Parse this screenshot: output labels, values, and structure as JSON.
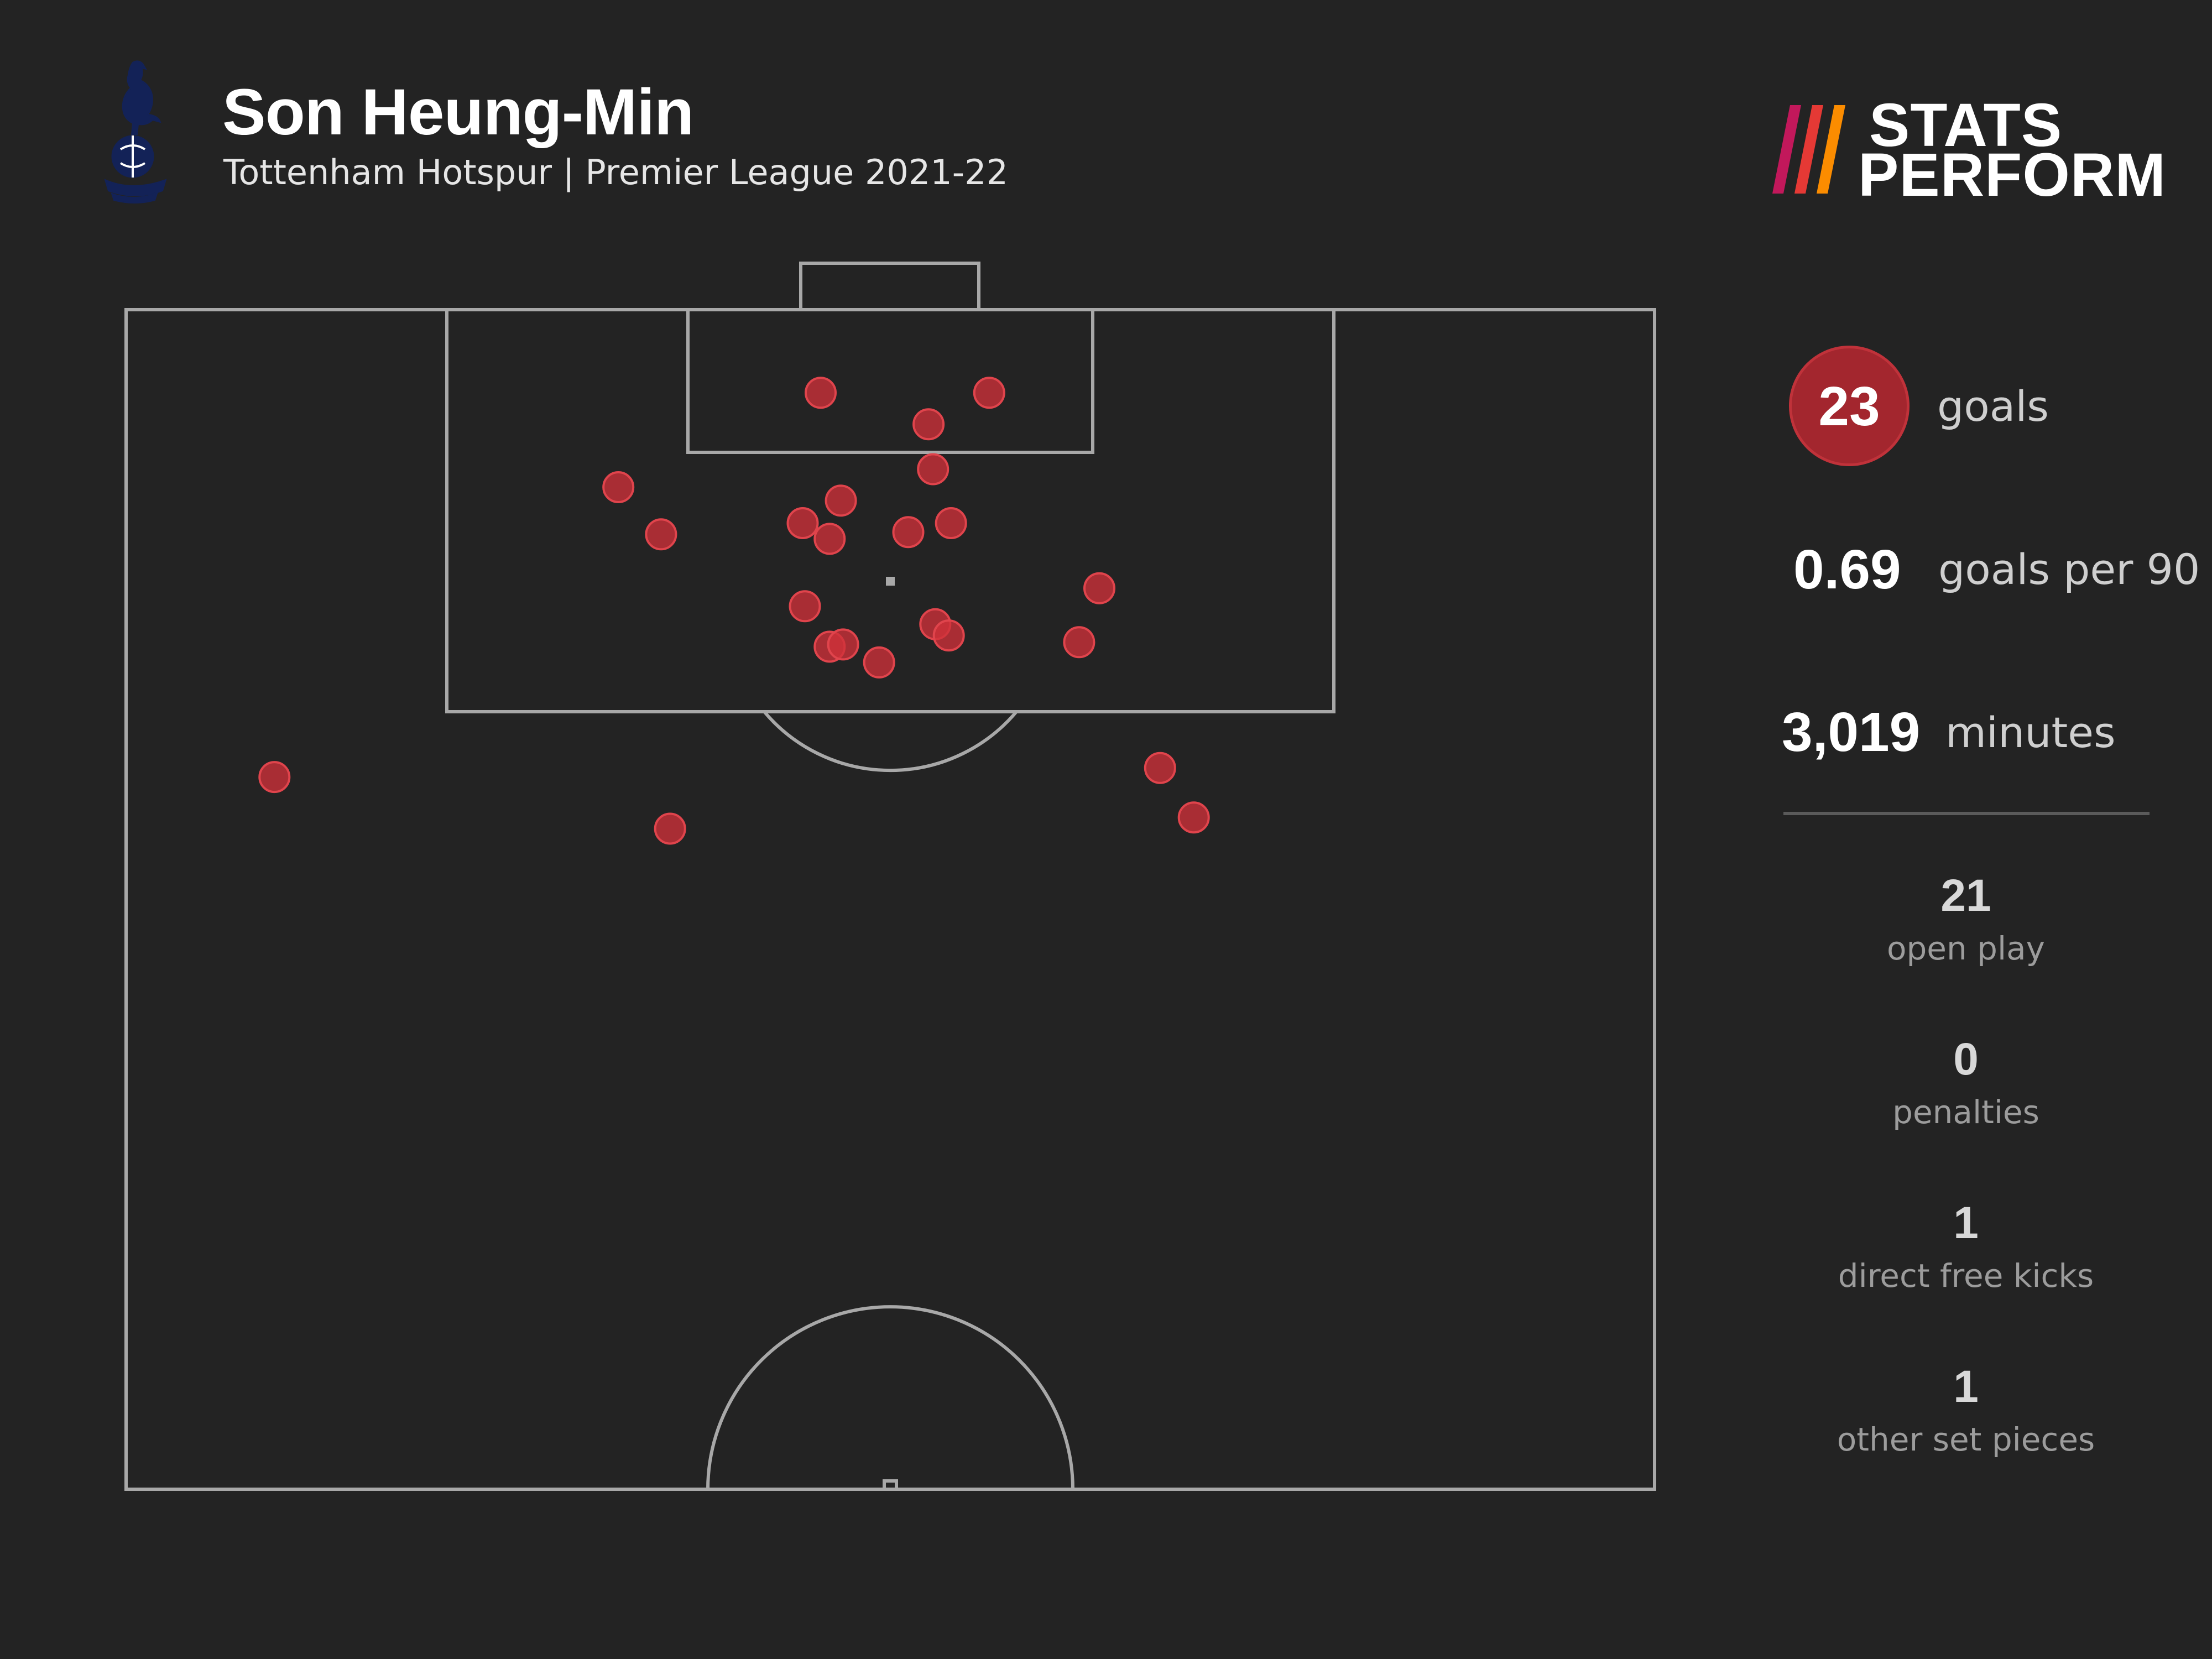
{
  "header": {
    "player_name": "Son Heung-Min",
    "subtitle": "Tottenham Hotspur | Premier League 2021-22"
  },
  "brand": {
    "line1": "STATS",
    "line2": "PERFORM",
    "stripe_colors": [
      "#c2185b",
      "#e53935",
      "#fb8c00"
    ]
  },
  "crest": {
    "icon": "tottenham-cockerel-crest-icon",
    "color": "#132257"
  },
  "stats": {
    "goals_value": "23",
    "goals_label": "goals",
    "per90_value": "0.69",
    "per90_label": "goals per 90",
    "minutes_value": "3,019",
    "minutes_label": "minutes"
  },
  "breakdown": [
    {
      "value": "21",
      "label": "open play"
    },
    {
      "value": "0",
      "label": "penalties"
    },
    {
      "value": "1",
      "label": "direct free kicks"
    },
    {
      "value": "1",
      "label": "other set pieces"
    }
  ],
  "colors": {
    "background": "#232323",
    "pitch_lines": "#a8a8a8",
    "goal_marker": "#d0313a",
    "highlight": "#a3262e"
  },
  "chart_data": {
    "type": "scatter",
    "title": "Son Heung-Min",
    "subtitle": "Tottenham Hotspur | Premier League 2021-22",
    "units": "metres from centre of goal line (x lateral, y distance from goal line)",
    "xlim": [
      -34,
      34
    ],
    "ylim": [
      0,
      52.5
    ],
    "series": [
      {
        "points": [
          {
            "x": -3.1,
            "y": 3.7
          },
          {
            "x": 4.4,
            "y": 3.7
          },
          {
            "x": 1.7,
            "y": 5.1
          },
          {
            "x": 1.9,
            "y": 7.1
          },
          {
            "x": -12.1,
            "y": 7.9
          },
          {
            "x": -2.2,
            "y": 8.5
          },
          {
            "x": -3.9,
            "y": 9.5
          },
          {
            "x": -10.2,
            "y": 10.0
          },
          {
            "x": -2.7,
            "y": 10.2
          },
          {
            "x": 0.8,
            "y": 9.9
          },
          {
            "x": 2.7,
            "y": 9.5
          },
          {
            "x": 9.3,
            "y": 12.4
          },
          {
            "x": -3.8,
            "y": 13.2
          },
          {
            "x": 2.0,
            "y": 14.0
          },
          {
            "x": 2.6,
            "y": 14.5
          },
          {
            "x": -2.7,
            "y": 15.0
          },
          {
            "x": -2.1,
            "y": 14.9
          },
          {
            "x": -0.5,
            "y": 15.7
          },
          {
            "x": 8.4,
            "y": 14.8
          },
          {
            "x": -27.4,
            "y": 20.8
          },
          {
            "x": 12.0,
            "y": 20.4
          },
          {
            "x": -9.8,
            "y": 23.1
          },
          {
            "x": 13.5,
            "y": 22.6
          }
        ]
      }
    ]
  }
}
